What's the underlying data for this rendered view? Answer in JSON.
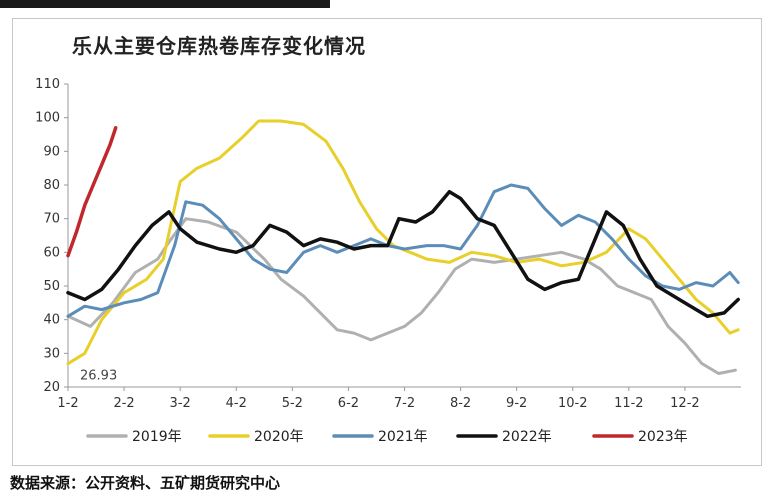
{
  "source_text": "数据来源：公开资料、五矿期货研究中心",
  "chart_data": {
    "type": "line",
    "title": "乐从主要仓库热卷库存变化情况",
    "xlabel": "",
    "ylabel": "",
    "x_ticks": [
      "1-2",
      "2-2",
      "3-2",
      "4-2",
      "5-2",
      "6-2",
      "7-2",
      "8-2",
      "9-2",
      "10-2",
      "11-2",
      "12-2"
    ],
    "y_ticks": [
      20,
      30,
      40,
      50,
      60,
      70,
      80,
      90,
      100,
      110
    ],
    "ylim": [
      20,
      110
    ],
    "grid": false,
    "legend_position": "bottom",
    "annotation": "26.93",
    "series": [
      {
        "name": "2019年",
        "color": "#b0b0b0",
        "x": [
          1.0,
          1.4,
          1.8,
          2.2,
          2.6,
          2.8,
          3.1,
          3.5,
          4.0,
          4.5,
          4.8,
          5.2,
          5.5,
          5.8,
          6.1,
          6.4,
          6.7,
          7.0,
          7.3,
          7.6,
          7.9,
          8.2,
          8.6,
          9.0,
          9.4,
          9.8,
          10.2,
          10.5,
          10.8,
          11.1,
          11.4,
          11.7,
          12.0,
          12.3,
          12.6,
          12.9
        ],
        "y": [
          41,
          38,
          45,
          54,
          58,
          63,
          70,
          69,
          66,
          58,
          52,
          47,
          42,
          37,
          36,
          34,
          36,
          38,
          42,
          48,
          55,
          58,
          57,
          58,
          59,
          60,
          58,
          55,
          50,
          48,
          46,
          38,
          33,
          27,
          24,
          25
        ]
      },
      {
        "name": "2020年",
        "color": "#e8cf2a",
        "x": [
          1.0,
          1.3,
          1.6,
          2.0,
          2.4,
          2.7,
          3.0,
          3.3,
          3.7,
          4.1,
          4.4,
          4.8,
          5.2,
          5.6,
          5.9,
          6.2,
          6.5,
          6.8,
          7.1,
          7.4,
          7.8,
          8.2,
          8.6,
          9.0,
          9.4,
          9.8,
          10.2,
          10.6,
          11.0,
          11.3,
          11.6,
          11.9,
          12.2,
          12.5,
          12.8,
          12.95
        ],
        "y": [
          26.93,
          30,
          40,
          48,
          52,
          58,
          81,
          85,
          88,
          94,
          99,
          99,
          98,
          93,
          85,
          75,
          67,
          62,
          60,
          58,
          57,
          60,
          59,
          57,
          58,
          56,
          57,
          60,
          67,
          64,
          58,
          52,
          46,
          42,
          36,
          37
        ]
      },
      {
        "name": "2021年",
        "color": "#5b8db8",
        "x": [
          1.0,
          1.3,
          1.6,
          2.0,
          2.3,
          2.6,
          2.9,
          3.1,
          3.4,
          3.7,
          4.0,
          4.3,
          4.6,
          4.9,
          5.2,
          5.5,
          5.8,
          6.1,
          6.4,
          6.7,
          7.0,
          7.4,
          7.7,
          8.0,
          8.3,
          8.6,
          8.9,
          9.2,
          9.5,
          9.8,
          10.1,
          10.4,
          10.7,
          11.0,
          11.3,
          11.6,
          11.9,
          12.2,
          12.5,
          12.8,
          12.95
        ],
        "y": [
          41,
          44,
          43,
          45,
          46,
          48,
          62,
          75,
          74,
          70,
          64,
          58,
          55,
          54,
          60,
          62,
          60,
          62,
          64,
          62,
          61,
          62,
          62,
          61,
          68,
          78,
          80,
          79,
          73,
          68,
          71,
          69,
          64,
          58,
          53,
          50,
          49,
          51,
          50,
          54,
          51
        ]
      },
      {
        "name": "2022年",
        "color": "#111111",
        "x": [
          1.0,
          1.3,
          1.6,
          1.9,
          2.2,
          2.5,
          2.8,
          3.0,
          3.3,
          3.7,
          4.0,
          4.3,
          4.6,
          4.9,
          5.2,
          5.5,
          5.8,
          6.1,
          6.4,
          6.7,
          6.9,
          7.2,
          7.5,
          7.8,
          8.0,
          8.3,
          8.6,
          8.9,
          9.2,
          9.5,
          9.8,
          10.1,
          10.4,
          10.6,
          10.9,
          11.2,
          11.5,
          11.8,
          12.1,
          12.4,
          12.7,
          12.95
        ],
        "y": [
          48,
          46,
          49,
          55,
          62,
          68,
          72,
          67,
          63,
          61,
          60,
          62,
          68,
          66,
          62,
          64,
          63,
          61,
          62,
          62,
          70,
          69,
          72,
          78,
          76,
          70,
          68,
          60,
          52,
          49,
          51,
          52,
          64,
          72,
          68,
          58,
          50,
          47,
          44,
          41,
          42,
          46
        ]
      },
      {
        "name": "2023年",
        "color": "#c0282d",
        "x": [
          1.0,
          1.15,
          1.3,
          1.45,
          1.6,
          1.75,
          1.85
        ],
        "y": [
          59,
          66,
          74,
          80,
          86,
          92,
          97
        ]
      }
    ]
  }
}
